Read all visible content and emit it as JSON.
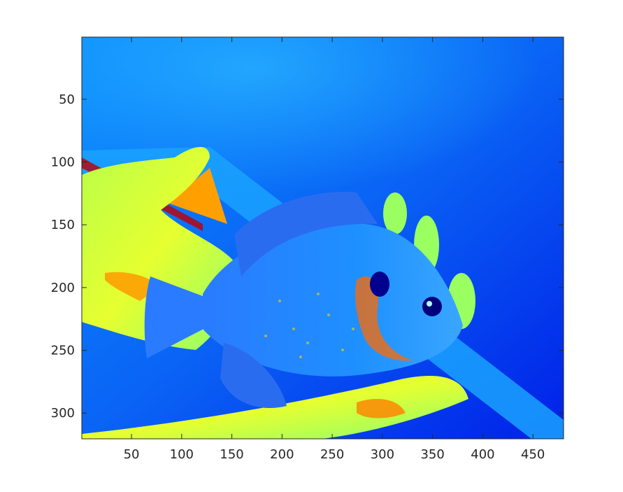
{
  "chart_data": {
    "type": "heatmap",
    "title": "",
    "xlabel": "",
    "ylabel": "",
    "description_colormap": "jet",
    "xlim": [
      0.5,
      480.5
    ],
    "ylim": [
      0.5,
      320.5
    ],
    "y_reversed": true,
    "grid": false,
    "legend": "none",
    "x_ticks": [
      50,
      100,
      150,
      200,
      250,
      300,
      350,
      400,
      450
    ],
    "y_ticks": [
      50,
      100,
      150,
      200,
      250,
      300
    ],
    "x_tick_labels": [
      "50",
      "100",
      "150",
      "200",
      "250",
      "300",
      "350",
      "400",
      "450"
    ],
    "y_tick_labels": [
      "50",
      "100",
      "150",
      "200",
      "250",
      "300"
    ],
    "colors": {
      "axis": "#262626",
      "background": "#ffffff",
      "jet_dark_blue": "#00008f",
      "jet_blue": "#0050ff",
      "jet_cyan": "#00d0ff",
      "jet_yellow": "#ffff00",
      "jet_orange": "#ff8000",
      "jet_red": "#c00000"
    }
  }
}
